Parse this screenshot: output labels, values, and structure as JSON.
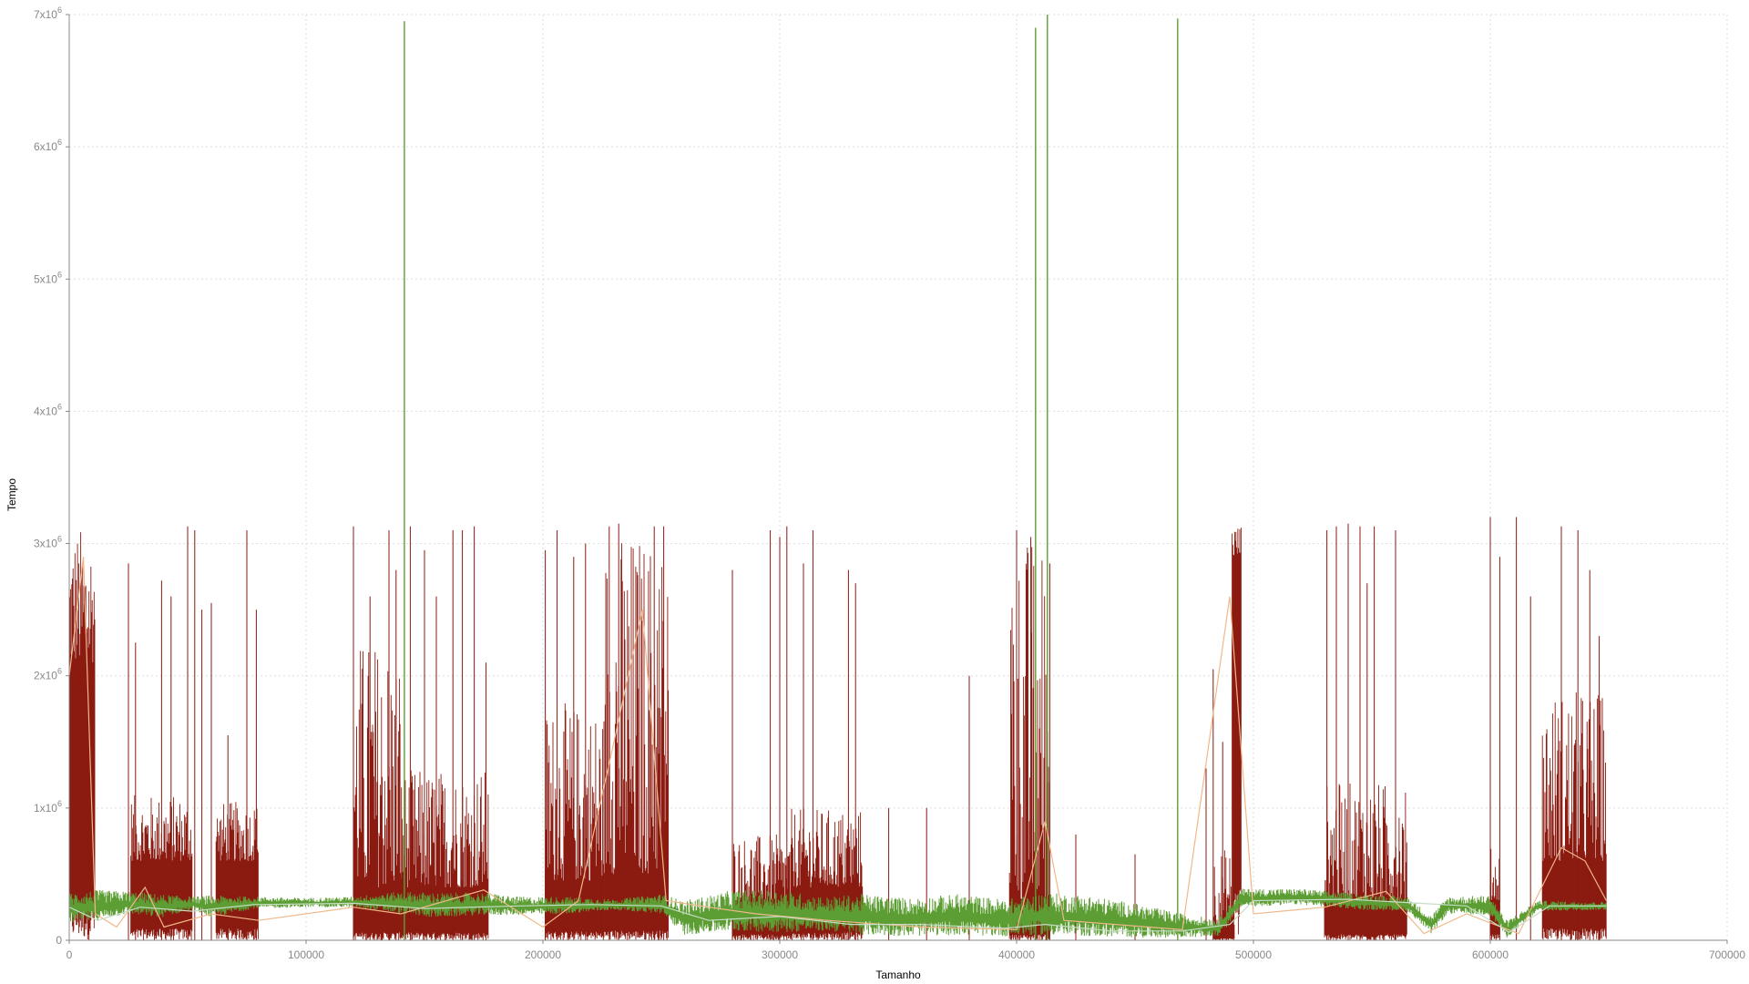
{
  "chart_data": {
    "type": "line",
    "title": "",
    "xlabel": "Tamanho",
    "ylabel": "Tempo",
    "xlim": [
      0,
      700000
    ],
    "ylim": [
      0,
      7000000
    ],
    "grid": true,
    "x_ticks": [
      {
        "value": 0,
        "label": "0"
      },
      {
        "value": 100000,
        "label": "100000"
      },
      {
        "value": 200000,
        "label": "200000"
      },
      {
        "value": 300000,
        "label": "300000"
      },
      {
        "value": 400000,
        "label": "400000"
      },
      {
        "value": 500000,
        "label": "500000"
      },
      {
        "value": 600000,
        "label": "600000"
      },
      {
        "value": 700000,
        "label": "700000"
      }
    ],
    "y_ticks": [
      {
        "value": 0,
        "base": "0",
        "exp": ""
      },
      {
        "value": 1000000,
        "base": "1x10",
        "exp": "6"
      },
      {
        "value": 2000000,
        "base": "2x10",
        "exp": "6"
      },
      {
        "value": 3000000,
        "base": "3x10",
        "exp": "6"
      },
      {
        "value": 4000000,
        "base": "4x10",
        "exp": "6"
      },
      {
        "value": 5000000,
        "base": "5x10",
        "exp": "6"
      },
      {
        "value": 6000000,
        "base": "6x10",
        "exp": "6"
      },
      {
        "value": 7000000,
        "base": "7x10",
        "exp": "6"
      }
    ],
    "series": [
      {
        "color": "#8b1a10",
        "blocks": [
          {
            "x": [
              0,
              11000
            ],
            "base": 2100000,
            "high": 3130000
          },
          {
            "x": [
              26000,
              52000
            ],
            "base": 600000,
            "high": 1100000
          },
          {
            "x": [
              62000,
              80000
            ],
            "base": 600000,
            "high": 1050000
          },
          {
            "x": [
              120000,
              140000
            ],
            "base": 400000,
            "high": 2300000
          },
          {
            "x": [
              140000,
              177000
            ],
            "base": 400000,
            "high": 1300000
          },
          {
            "x": [
              201000,
              226000
            ],
            "base": 450000,
            "high": 1800000
          },
          {
            "x": [
              226000,
              253000
            ],
            "base": 500000,
            "high": 3130000
          },
          {
            "x": [
              280000,
              305000
            ],
            "base": 300000,
            "high": 800000
          },
          {
            "x": [
              305000,
              335000
            ],
            "base": 400000,
            "high": 1000000
          },
          {
            "x": [
              397000,
              414000
            ],
            "base": 300000,
            "high": 3100000
          },
          {
            "x": [
              483000,
              492000
            ],
            "base": 100000,
            "high": 700000
          },
          {
            "x": [
              491000,
              495000
            ],
            "base": 2900000,
            "high": 3150000
          },
          {
            "x": [
              530000,
              565000
            ],
            "base": 300000,
            "high": 1200000
          },
          {
            "x": [
              600000,
              604000
            ],
            "base": 300000,
            "high": 700000
          },
          {
            "x": [
              622000,
              649000
            ],
            "base": 600000,
            "high": 1900000
          }
        ],
        "spikes": [
          [
            25000,
            2850000
          ],
          [
            28000,
            2250000
          ],
          [
            39000,
            2720000
          ],
          [
            43000,
            2600000
          ],
          [
            50000,
            3130000
          ],
          [
            53000,
            3100000
          ],
          [
            56000,
            2500000
          ],
          [
            60000,
            2550000
          ],
          [
            67000,
            1550000
          ],
          [
            75000,
            3100000
          ],
          [
            79000,
            2500000
          ],
          [
            120000,
            3130000
          ],
          [
            127000,
            2600000
          ],
          [
            135000,
            3100000
          ],
          [
            138000,
            2800000
          ],
          [
            144000,
            3130000
          ],
          [
            150000,
            2950000
          ],
          [
            155000,
            2600000
          ],
          [
            162000,
            3100000
          ],
          [
            166000,
            3100000
          ],
          [
            171000,
            3130000
          ],
          [
            176000,
            2100000
          ],
          [
            201000,
            2950000
          ],
          [
            206000,
            3100000
          ],
          [
            213000,
            2900000
          ],
          [
            218000,
            3000000
          ],
          [
            228000,
            3130000
          ],
          [
            232000,
            3150000
          ],
          [
            247000,
            3130000
          ],
          [
            251000,
            3130000
          ],
          [
            280000,
            2800000
          ],
          [
            296000,
            3100000
          ],
          [
            300000,
            3050000
          ],
          [
            303000,
            3130000
          ],
          [
            310000,
            2850000
          ],
          [
            314000,
            3100000
          ],
          [
            329000,
            2800000
          ],
          [
            332000,
            2700000
          ],
          [
            346000,
            1000000
          ],
          [
            362000,
            1000000
          ],
          [
            380000,
            2000000
          ],
          [
            400000,
            3100000
          ],
          [
            406000,
            3050000
          ],
          [
            414000,
            2850000
          ],
          [
            425000,
            800000
          ],
          [
            450000,
            650000
          ],
          [
            480000,
            1300000
          ],
          [
            483000,
            2050000
          ],
          [
            487000,
            1500000
          ],
          [
            531000,
            3100000
          ],
          [
            535000,
            3130000
          ],
          [
            540000,
            3150000
          ],
          [
            545000,
            3130000
          ],
          [
            548000,
            2700000
          ],
          [
            551000,
            3130000
          ],
          [
            560000,
            3100000
          ],
          [
            600000,
            3200000
          ],
          [
            604000,
            2900000
          ],
          [
            611000,
            3200000
          ],
          [
            617000,
            2600000
          ],
          [
            630000,
            3130000
          ],
          [
            637000,
            3100000
          ],
          [
            642000,
            2800000
          ],
          [
            646000,
            2300000
          ]
        ]
      },
      {
        "color": "#5c9e34",
        "band": [
          [
            0,
            130000,
            360000
          ],
          [
            12000,
            150000,
            380000
          ],
          [
            25000,
            200000,
            370000
          ],
          [
            38000,
            170000,
            350000
          ],
          [
            52000,
            230000,
            330000
          ],
          [
            60000,
            170000,
            340000
          ],
          [
            78000,
            240000,
            330000
          ],
          [
            100000,
            250000,
            320000
          ],
          [
            120000,
            250000,
            330000
          ],
          [
            140000,
            200000,
            370000
          ],
          [
            155000,
            170000,
            360000
          ],
          [
            175000,
            190000,
            360000
          ],
          [
            190000,
            190000,
            330000
          ],
          [
            210000,
            200000,
            330000
          ],
          [
            230000,
            230000,
            310000
          ],
          [
            250000,
            200000,
            350000
          ],
          [
            260000,
            40000,
            300000
          ],
          [
            280000,
            70000,
            380000
          ],
          [
            300000,
            60000,
            380000
          ],
          [
            320000,
            70000,
            330000
          ],
          [
            335000,
            40000,
            350000
          ],
          [
            355000,
            30000,
            320000
          ],
          [
            375000,
            40000,
            350000
          ],
          [
            395000,
            30000,
            310000
          ],
          [
            412000,
            40000,
            360000
          ],
          [
            430000,
            30000,
            340000
          ],
          [
            450000,
            20000,
            280000
          ],
          [
            470000,
            20000,
            200000
          ],
          [
            485000,
            30000,
            160000
          ],
          [
            495000,
            250000,
            390000
          ],
          [
            520000,
            270000,
            390000
          ],
          [
            545000,
            230000,
            350000
          ],
          [
            565000,
            220000,
            330000
          ],
          [
            575000,
            50000,
            190000
          ],
          [
            582000,
            200000,
            330000
          ],
          [
            600000,
            190000,
            340000
          ],
          [
            607000,
            20000,
            150000
          ],
          [
            620000,
            220000,
            300000
          ],
          [
            649000,
            230000,
            290000
          ]
        ],
        "spikes": [
          [
            141500,
            6950000
          ],
          [
            408000,
            6900000
          ],
          [
            413000,
            7000000
          ],
          [
            468000,
            6970000
          ]
        ]
      },
      {
        "color": "#f0b88a",
        "points": [
          [
            0,
            2000000
          ],
          [
            6000,
            2900000
          ],
          [
            11000,
            200000
          ],
          [
            20000,
            100000
          ],
          [
            32000,
            400000
          ],
          [
            40000,
            100000
          ],
          [
            60000,
            200000
          ],
          [
            80000,
            150000
          ],
          [
            120000,
            250000
          ],
          [
            140000,
            200000
          ],
          [
            175000,
            380000
          ],
          [
            200000,
            100000
          ],
          [
            215000,
            300000
          ],
          [
            230000,
            1500000
          ],
          [
            242000,
            2500000
          ],
          [
            252000,
            300000
          ],
          [
            270000,
            250000
          ],
          [
            290000,
            200000
          ],
          [
            320000,
            150000
          ],
          [
            360000,
            100000
          ],
          [
            400000,
            80000
          ],
          [
            412000,
            900000
          ],
          [
            420000,
            150000
          ],
          [
            470000,
            80000
          ],
          [
            490000,
            2600000
          ],
          [
            500000,
            200000
          ],
          [
            530000,
            250000
          ],
          [
            556000,
            370000
          ],
          [
            572000,
            50000
          ],
          [
            590000,
            200000
          ],
          [
            612000,
            50000
          ],
          [
            630000,
            700000
          ],
          [
            640000,
            600000
          ],
          [
            649000,
            300000
          ]
        ]
      },
      {
        "color": "#c6dcc4",
        "points": [
          [
            0,
            250000
          ],
          [
            12000,
            150000
          ],
          [
            30000,
            250000
          ],
          [
            52000,
            220000
          ],
          [
            78000,
            270000
          ],
          [
            120000,
            280000
          ],
          [
            150000,
            240000
          ],
          [
            190000,
            260000
          ],
          [
            220000,
            270000
          ],
          [
            250000,
            260000
          ],
          [
            270000,
            150000
          ],
          [
            300000,
            180000
          ],
          [
            330000,
            120000
          ],
          [
            360000,
            120000
          ],
          [
            395000,
            90000
          ],
          [
            412000,
            120000
          ],
          [
            440000,
            70000
          ],
          [
            470000,
            70000
          ],
          [
            490000,
            120000
          ],
          [
            500000,
            300000
          ],
          [
            540000,
            310000
          ],
          [
            570000,
            280000
          ],
          [
            590000,
            260000
          ],
          [
            608000,
            60000
          ],
          [
            625000,
            260000
          ],
          [
            649000,
            260000
          ]
        ]
      }
    ]
  }
}
